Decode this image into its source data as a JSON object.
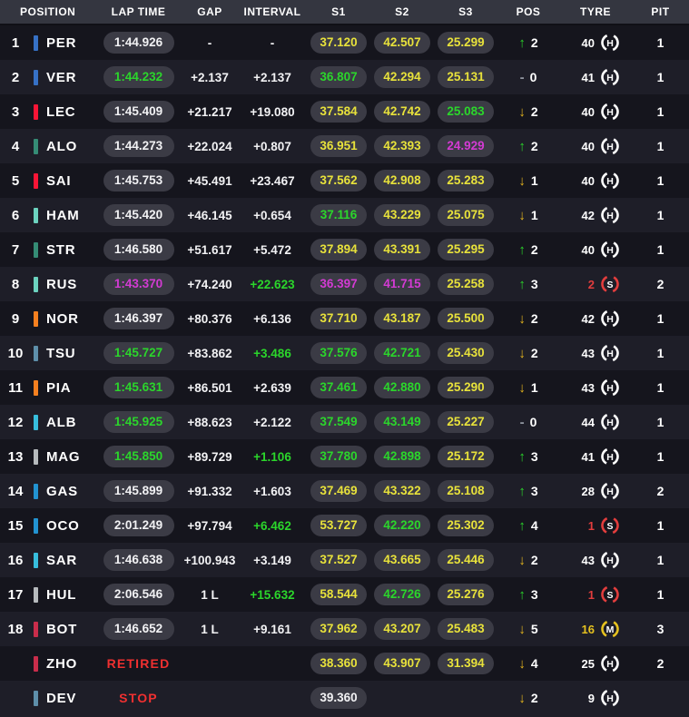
{
  "header": {
    "columns": [
      "POSITION",
      "LAP TIME",
      "GAP",
      "INTERVAL",
      "S1",
      "S2",
      "S3",
      "POS",
      "TYRE",
      "PIT"
    ]
  },
  "palette": {
    "white": "#f2f2f4",
    "green": "#2bd62b",
    "yellow": "#e8e23b",
    "purple": "#d33bd3",
    "red": "#f03030",
    "arrow_up": "#2bd62b",
    "arrow_down": "#e7b71e",
    "dash": "#9096a0",
    "row_dark": "#15151d",
    "row_light": "#1e1e28",
    "header_bg": "#343640",
    "pill_bg": "#3b3b45"
  },
  "compound_colors": {
    "H": "#ffffff",
    "M": "#e5c11f",
    "S": "#e23d3d"
  },
  "rows": [
    {
      "pos": "1",
      "code": "PER",
      "team_color": "#3671C6",
      "lap": "1:44.926",
      "lap_color": "white",
      "lap_pill": true,
      "gap": "-",
      "interval": "-",
      "interval_color": "white",
      "s1": "37.120",
      "s1_color": "yellow",
      "s2": "42.507",
      "s2_color": "yellow",
      "s3": "25.299",
      "s3_color": "yellow",
      "chg_dir": "up",
      "chg_val": "2",
      "tyre_laps": "40",
      "tyre_compound": "H",
      "pit": "1"
    },
    {
      "pos": "2",
      "code": "VER",
      "team_color": "#3671C6",
      "lap": "1:44.232",
      "lap_color": "green",
      "lap_pill": true,
      "gap": "+2.137",
      "interval": "+2.137",
      "interval_color": "white",
      "s1": "36.807",
      "s1_color": "green",
      "s2": "42.294",
      "s2_color": "yellow",
      "s3": "25.131",
      "s3_color": "yellow",
      "chg_dir": "none",
      "chg_val": "0",
      "tyre_laps": "41",
      "tyre_compound": "H",
      "pit": "1"
    },
    {
      "pos": "3",
      "code": "LEC",
      "team_color": "#F91536",
      "lap": "1:45.409",
      "lap_color": "white",
      "lap_pill": true,
      "gap": "+21.217",
      "interval": "+19.080",
      "interval_color": "white",
      "s1": "37.584",
      "s1_color": "yellow",
      "s2": "42.742",
      "s2_color": "yellow",
      "s3": "25.083",
      "s3_color": "green",
      "chg_dir": "down",
      "chg_val": "2",
      "tyre_laps": "40",
      "tyre_compound": "H",
      "pit": "1"
    },
    {
      "pos": "4",
      "code": "ALO",
      "team_color": "#358C75",
      "lap": "1:44.273",
      "lap_color": "white",
      "lap_pill": true,
      "gap": "+22.024",
      "interval": "+0.807",
      "interval_color": "white",
      "s1": "36.951",
      "s1_color": "yellow",
      "s2": "42.393",
      "s2_color": "yellow",
      "s3": "24.929",
      "s3_color": "purple",
      "chg_dir": "up",
      "chg_val": "2",
      "tyre_laps": "40",
      "tyre_compound": "H",
      "pit": "1"
    },
    {
      "pos": "5",
      "code": "SAI",
      "team_color": "#F91536",
      "lap": "1:45.753",
      "lap_color": "white",
      "lap_pill": true,
      "gap": "+45.491",
      "interval": "+23.467",
      "interval_color": "white",
      "s1": "37.562",
      "s1_color": "yellow",
      "s2": "42.908",
      "s2_color": "yellow",
      "s3": "25.283",
      "s3_color": "yellow",
      "chg_dir": "down",
      "chg_val": "1",
      "tyre_laps": "40",
      "tyre_compound": "H",
      "pit": "1"
    },
    {
      "pos": "6",
      "code": "HAM",
      "team_color": "#6CD3BF",
      "lap": "1:45.420",
      "lap_color": "white",
      "lap_pill": true,
      "gap": "+46.145",
      "interval": "+0.654",
      "interval_color": "white",
      "s1": "37.116",
      "s1_color": "green",
      "s2": "43.229",
      "s2_color": "yellow",
      "s3": "25.075",
      "s3_color": "yellow",
      "chg_dir": "down",
      "chg_val": "1",
      "tyre_laps": "42",
      "tyre_compound": "H",
      "pit": "1"
    },
    {
      "pos": "7",
      "code": "STR",
      "team_color": "#358C75",
      "lap": "1:46.580",
      "lap_color": "white",
      "lap_pill": true,
      "gap": "+51.617",
      "interval": "+5.472",
      "interval_color": "white",
      "s1": "37.894",
      "s1_color": "yellow",
      "s2": "43.391",
      "s2_color": "yellow",
      "s3": "25.295",
      "s3_color": "yellow",
      "chg_dir": "up",
      "chg_val": "2",
      "tyre_laps": "40",
      "tyre_compound": "H",
      "pit": "1"
    },
    {
      "pos": "8",
      "code": "RUS",
      "team_color": "#6CD3BF",
      "lap": "1:43.370",
      "lap_color": "purple",
      "lap_pill": true,
      "gap": "+74.240",
      "interval": "+22.623",
      "interval_color": "green",
      "s1": "36.397",
      "s1_color": "purple",
      "s2": "41.715",
      "s2_color": "purple",
      "s3": "25.258",
      "s3_color": "yellow",
      "chg_dir": "up",
      "chg_val": "3",
      "tyre_laps": "2",
      "tyre_compound": "S",
      "pit": "2"
    },
    {
      "pos": "9",
      "code": "NOR",
      "team_color": "#F58020",
      "lap": "1:46.397",
      "lap_color": "white",
      "lap_pill": true,
      "gap": "+80.376",
      "interval": "+6.136",
      "interval_color": "white",
      "s1": "37.710",
      "s1_color": "yellow",
      "s2": "43.187",
      "s2_color": "yellow",
      "s3": "25.500",
      "s3_color": "yellow",
      "chg_dir": "down",
      "chg_val": "2",
      "tyre_laps": "42",
      "tyre_compound": "H",
      "pit": "1"
    },
    {
      "pos": "10",
      "code": "TSU",
      "team_color": "#5E8FAA",
      "lap": "1:45.727",
      "lap_color": "green",
      "lap_pill": true,
      "gap": "+83.862",
      "interval": "+3.486",
      "interval_color": "green",
      "s1": "37.576",
      "s1_color": "green",
      "s2": "42.721",
      "s2_color": "green",
      "s3": "25.430",
      "s3_color": "yellow",
      "chg_dir": "down",
      "chg_val": "2",
      "tyre_laps": "43",
      "tyre_compound": "H",
      "pit": "1"
    },
    {
      "pos": "11",
      "code": "PIA",
      "team_color": "#F58020",
      "lap": "1:45.631",
      "lap_color": "green",
      "lap_pill": true,
      "gap": "+86.501",
      "interval": "+2.639",
      "interval_color": "white",
      "s1": "37.461",
      "s1_color": "green",
      "s2": "42.880",
      "s2_color": "green",
      "s3": "25.290",
      "s3_color": "yellow",
      "chg_dir": "down",
      "chg_val": "1",
      "tyre_laps": "43",
      "tyre_compound": "H",
      "pit": "1"
    },
    {
      "pos": "12",
      "code": "ALB",
      "team_color": "#37BEDD",
      "lap": "1:45.925",
      "lap_color": "green",
      "lap_pill": true,
      "gap": "+88.623",
      "interval": "+2.122",
      "interval_color": "white",
      "s1": "37.549",
      "s1_color": "green",
      "s2": "43.149",
      "s2_color": "green",
      "s3": "25.227",
      "s3_color": "yellow",
      "chg_dir": "none",
      "chg_val": "0",
      "tyre_laps": "44",
      "tyre_compound": "H",
      "pit": "1"
    },
    {
      "pos": "13",
      "code": "MAG",
      "team_color": "#B6BABD",
      "lap": "1:45.850",
      "lap_color": "green",
      "lap_pill": true,
      "gap": "+89.729",
      "interval": "+1.106",
      "interval_color": "green",
      "s1": "37.780",
      "s1_color": "green",
      "s2": "42.898",
      "s2_color": "green",
      "s3": "25.172",
      "s3_color": "yellow",
      "chg_dir": "up",
      "chg_val": "3",
      "tyre_laps": "41",
      "tyre_compound": "H",
      "pit": "1"
    },
    {
      "pos": "14",
      "code": "GAS",
      "team_color": "#2293D1",
      "lap": "1:45.899",
      "lap_color": "white",
      "lap_pill": true,
      "gap": "+91.332",
      "interval": "+1.603",
      "interval_color": "white",
      "s1": "37.469",
      "s1_color": "yellow",
      "s2": "43.322",
      "s2_color": "yellow",
      "s3": "25.108",
      "s3_color": "yellow",
      "chg_dir": "up",
      "chg_val": "3",
      "tyre_laps": "28",
      "tyre_compound": "H",
      "pit": "2"
    },
    {
      "pos": "15",
      "code": "OCO",
      "team_color": "#2293D1",
      "lap": "2:01.249",
      "lap_color": "white",
      "lap_pill": true,
      "gap": "+97.794",
      "interval": "+6.462",
      "interval_color": "green",
      "s1": "53.727",
      "s1_color": "yellow",
      "s2": "42.220",
      "s2_color": "green",
      "s3": "25.302",
      "s3_color": "yellow",
      "chg_dir": "up",
      "chg_val": "4",
      "tyre_laps": "1",
      "tyre_compound": "S",
      "pit": "1"
    },
    {
      "pos": "16",
      "code": "SAR",
      "team_color": "#37BEDD",
      "lap": "1:46.638",
      "lap_color": "white",
      "lap_pill": true,
      "gap": "+100.943",
      "interval": "+3.149",
      "interval_color": "white",
      "s1": "37.527",
      "s1_color": "yellow",
      "s2": "43.665",
      "s2_color": "yellow",
      "s3": "25.446",
      "s3_color": "yellow",
      "chg_dir": "down",
      "chg_val": "2",
      "tyre_laps": "43",
      "tyre_compound": "H",
      "pit": "1"
    },
    {
      "pos": "17",
      "code": "HUL",
      "team_color": "#B6BABD",
      "lap": "2:06.546",
      "lap_color": "white",
      "lap_pill": true,
      "gap": "1 L",
      "interval": "+15.632",
      "interval_color": "green",
      "s1": "58.544",
      "s1_color": "yellow",
      "s2": "42.726",
      "s2_color": "green",
      "s3": "25.276",
      "s3_color": "yellow",
      "chg_dir": "up",
      "chg_val": "3",
      "tyre_laps": "1",
      "tyre_compound": "S",
      "pit": "1"
    },
    {
      "pos": "18",
      "code": "BOT",
      "team_color": "#C92D4B",
      "lap": "1:46.652",
      "lap_color": "white",
      "lap_pill": true,
      "gap": "1 L",
      "interval": "+9.161",
      "interval_color": "white",
      "s1": "37.962",
      "s1_color": "yellow",
      "s2": "43.207",
      "s2_color": "yellow",
      "s3": "25.483",
      "s3_color": "yellow",
      "chg_dir": "down",
      "chg_val": "5",
      "tyre_laps": "16",
      "tyre_compound": "M",
      "pit": "3"
    },
    {
      "pos": "",
      "code": "ZHO",
      "team_color": "#C92D4B",
      "lap": "RETIRED",
      "lap_color": "red",
      "lap_pill": false,
      "gap": "",
      "interval": "",
      "interval_color": "white",
      "s1": "38.360",
      "s1_color": "yellow",
      "s2": "43.907",
      "s2_color": "yellow",
      "s3": "31.394",
      "s3_color": "yellow",
      "chg_dir": "down",
      "chg_val": "4",
      "tyre_laps": "25",
      "tyre_compound": "H",
      "pit": "2"
    },
    {
      "pos": "",
      "code": "DEV",
      "team_color": "#5E8FAA",
      "lap": "STOP",
      "lap_color": "red",
      "lap_pill": false,
      "gap": "",
      "interval": "",
      "interval_color": "white",
      "s1": "39.360",
      "s1_color": "white",
      "s2": "",
      "s2_color": "white",
      "s3": "",
      "s3_color": "white",
      "chg_dir": "down",
      "chg_val": "2",
      "tyre_laps": "9",
      "tyre_compound": "H",
      "pit": ""
    }
  ]
}
